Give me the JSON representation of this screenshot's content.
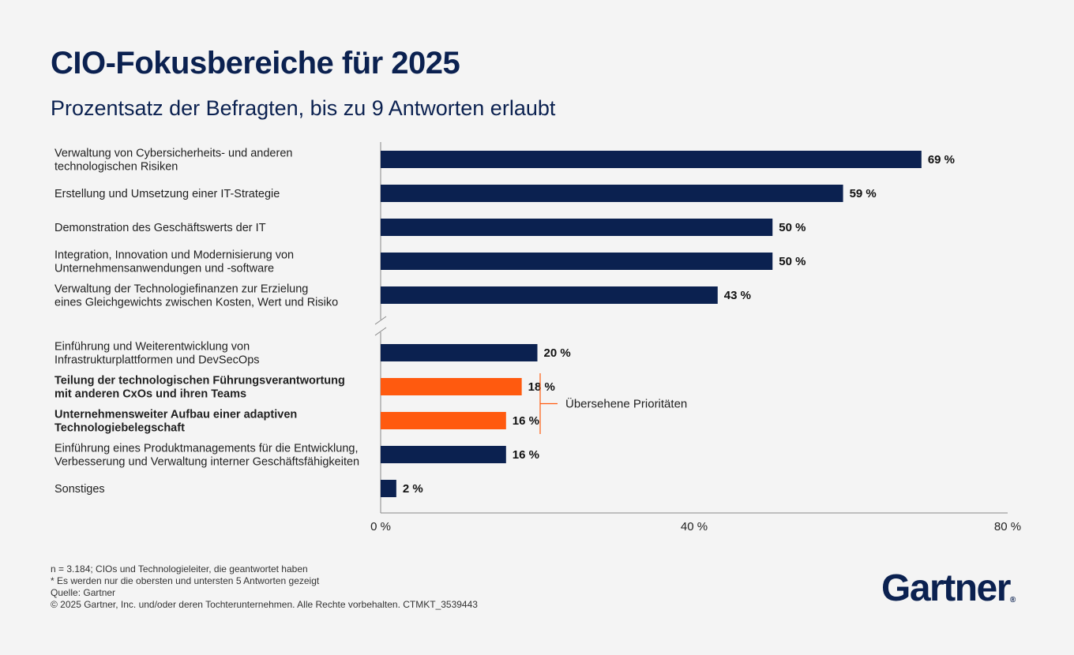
{
  "title": "CIO-Fokusbereiche für 2025",
  "subtitle": "Prozentsatz der Befragten, bis zu 9 Antworten erlaubt",
  "chart_data": {
    "type": "bar",
    "orientation": "horizontal",
    "xlim": [
      0,
      80
    ],
    "x_ticks": [
      "0 %",
      "40 %",
      "80 %"
    ],
    "axis_break_after_index": 4,
    "categories": [
      [
        "Verwaltung von Cybersicherheits- und anderen",
        "technologischen Risiken"
      ],
      [
        "Erstellung und Umsetzung einer IT-Strategie"
      ],
      [
        "Demonstration des Geschäftswerts der IT"
      ],
      [
        "Integration, Innovation und Modernisierung von",
        "Unternehmensanwendungen und -software"
      ],
      [
        "Verwaltung der Technologiefinanzen zur Erzielung",
        "eines Gleichgewichts zwischen Kosten, Wert und Risiko"
      ],
      [
        "Einführung und Weiterentwicklung von",
        "Infrastrukturplattformen und DevSecOps"
      ],
      [
        "Teilung der technologischen Führungsverantwortung",
        "mit anderen CxOs und ihren Teams"
      ],
      [
        "Unternehmensweiter Aufbau einer adaptiven",
        "Technologiebelegschaft"
      ],
      [
        "Einführung eines Produktmanagements für die Entwicklung,",
        "Verbesserung und Verwaltung interner Geschäftsfähigkeiten"
      ],
      [
        "Sonstiges"
      ]
    ],
    "values": [
      69,
      59,
      50,
      50,
      43,
      20,
      18,
      16,
      16,
      2
    ],
    "value_labels": [
      "69 %",
      "59 %",
      "50 %",
      "50 %",
      "43 %",
      "20 %",
      "18 %",
      "16 %",
      "16 %",
      "2 %"
    ],
    "highlighted": [
      false,
      false,
      false,
      false,
      false,
      false,
      true,
      true,
      false,
      false
    ],
    "colors": {
      "default": "#0b2150",
      "highlight": "#ff5a0f",
      "axis": "#888888"
    },
    "annotation": "Übersehene Prioritäten"
  },
  "footnotes": [
    "n = 3.184; CIOs und Technologieleiter, die geantwortet haben",
    "* Es werden nur die obersten und untersten 5 Antworten gezeigt",
    "Quelle: Gartner",
    "© 2025 Gartner, Inc. und/oder deren Tochterunternehmen. Alle Rechte vorbehalten. CTMKT_3539443"
  ],
  "logo": {
    "text": "Gartner",
    "mark": "®"
  }
}
